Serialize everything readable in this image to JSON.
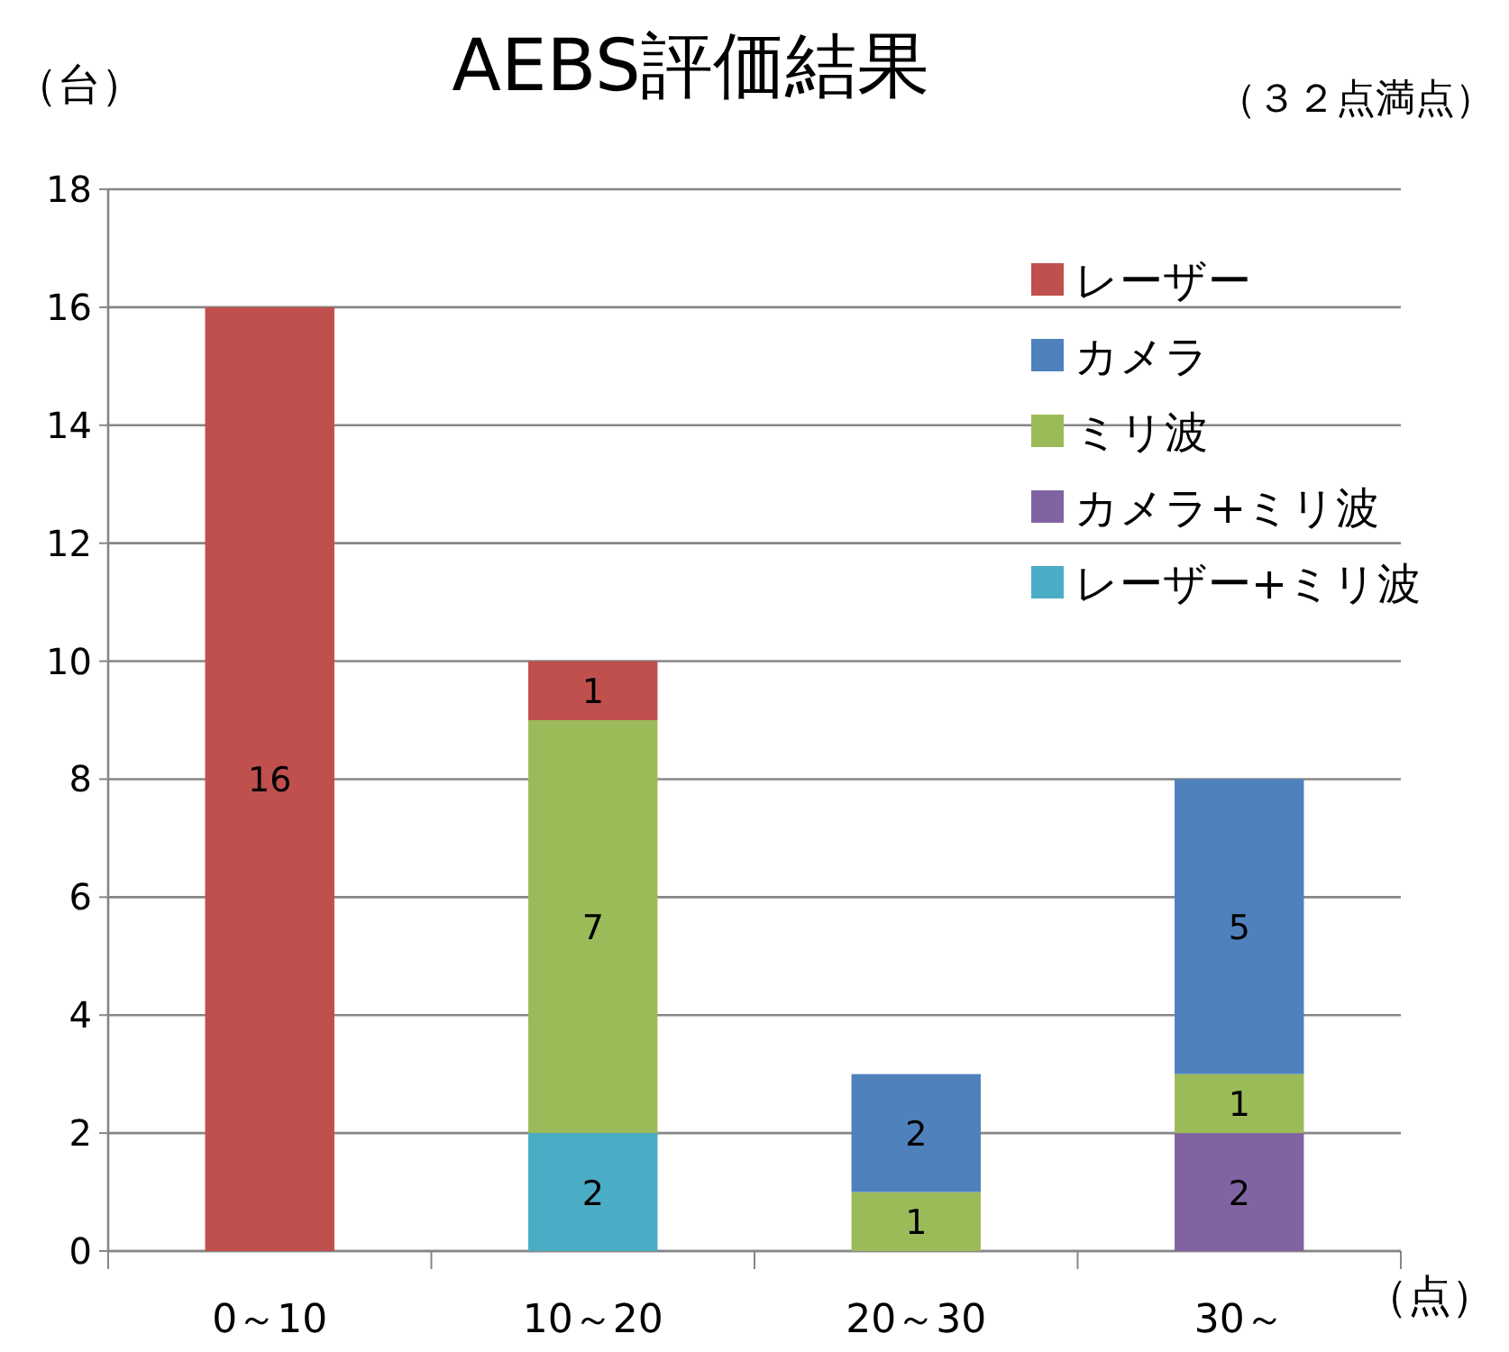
{
  "chart_data": {
    "type": "bar",
    "stacked": true,
    "title": "AEBS評価結果",
    "ylabel": "（台）",
    "xlabel": "（点）",
    "annotations": [
      "（３２点満点）"
    ],
    "categories": [
      "0～10",
      "10～20",
      "20～30",
      "30～"
    ],
    "series": [
      {
        "name": "レーザー+ミリ波",
        "color": "#4bacc6",
        "values": [
          null,
          2,
          null,
          null
        ]
      },
      {
        "name": "カメラ+ミリ波",
        "color": "#8064a2",
        "values": [
          null,
          null,
          null,
          2
        ]
      },
      {
        "name": "ミリ波",
        "color": "#9bbb59",
        "values": [
          null,
          7,
          1,
          1
        ]
      },
      {
        "name": "カメラ",
        "color": "#4f81bd",
        "values": [
          null,
          null,
          2,
          5
        ]
      },
      {
        "name": "レーザー",
        "color": "#c0504d",
        "values": [
          16,
          1,
          null,
          null
        ]
      }
    ],
    "ylim": [
      0,
      18
    ],
    "yticks": [
      0,
      2,
      4,
      6,
      8,
      10,
      12,
      14,
      16,
      18
    ],
    "grid": "y",
    "legend": "top right",
    "data_labels": true
  }
}
